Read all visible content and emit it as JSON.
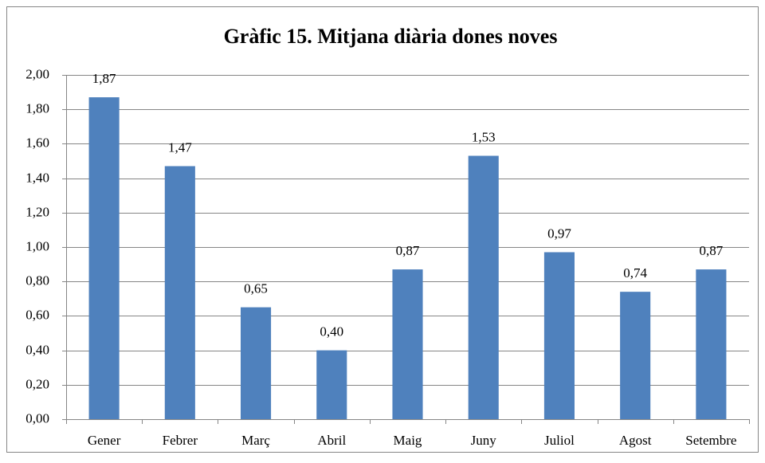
{
  "chart_data": {
    "type": "bar",
    "title": "Gràfic 15. Mitjana diària dones noves",
    "categories": [
      "Gener",
      "Febrer",
      "Març",
      "Abril",
      "Maig",
      "Juny",
      "Juliol",
      "Agost",
      "Setembre"
    ],
    "values": [
      1.87,
      1.47,
      0.65,
      0.4,
      0.87,
      1.53,
      0.97,
      0.74,
      0.87
    ],
    "value_labels": [
      "1,87",
      "1,47",
      "0,65",
      "0,40",
      "0,87",
      "1,53",
      "0,97",
      "0,74",
      "0,87"
    ],
    "color": "#4f81bd",
    "ylim": [
      0,
      2
    ],
    "yticks": [
      {
        "value": 0,
        "label": "0,00"
      },
      {
        "value": 0.2,
        "label": "0,20"
      },
      {
        "value": 0.4,
        "label": "0,40"
      },
      {
        "value": 0.6,
        "label": "0,60"
      },
      {
        "value": 0.8,
        "label": "0,80"
      },
      {
        "value": 1.0,
        "label": "1,00"
      },
      {
        "value": 1.2,
        "label": "1,20"
      },
      {
        "value": 1.4,
        "label": "1,40"
      },
      {
        "value": 1.6,
        "label": "1,60"
      },
      {
        "value": 1.8,
        "label": "1,80"
      },
      {
        "value": 2.0,
        "label": "2,00"
      }
    ],
    "grid": true
  }
}
